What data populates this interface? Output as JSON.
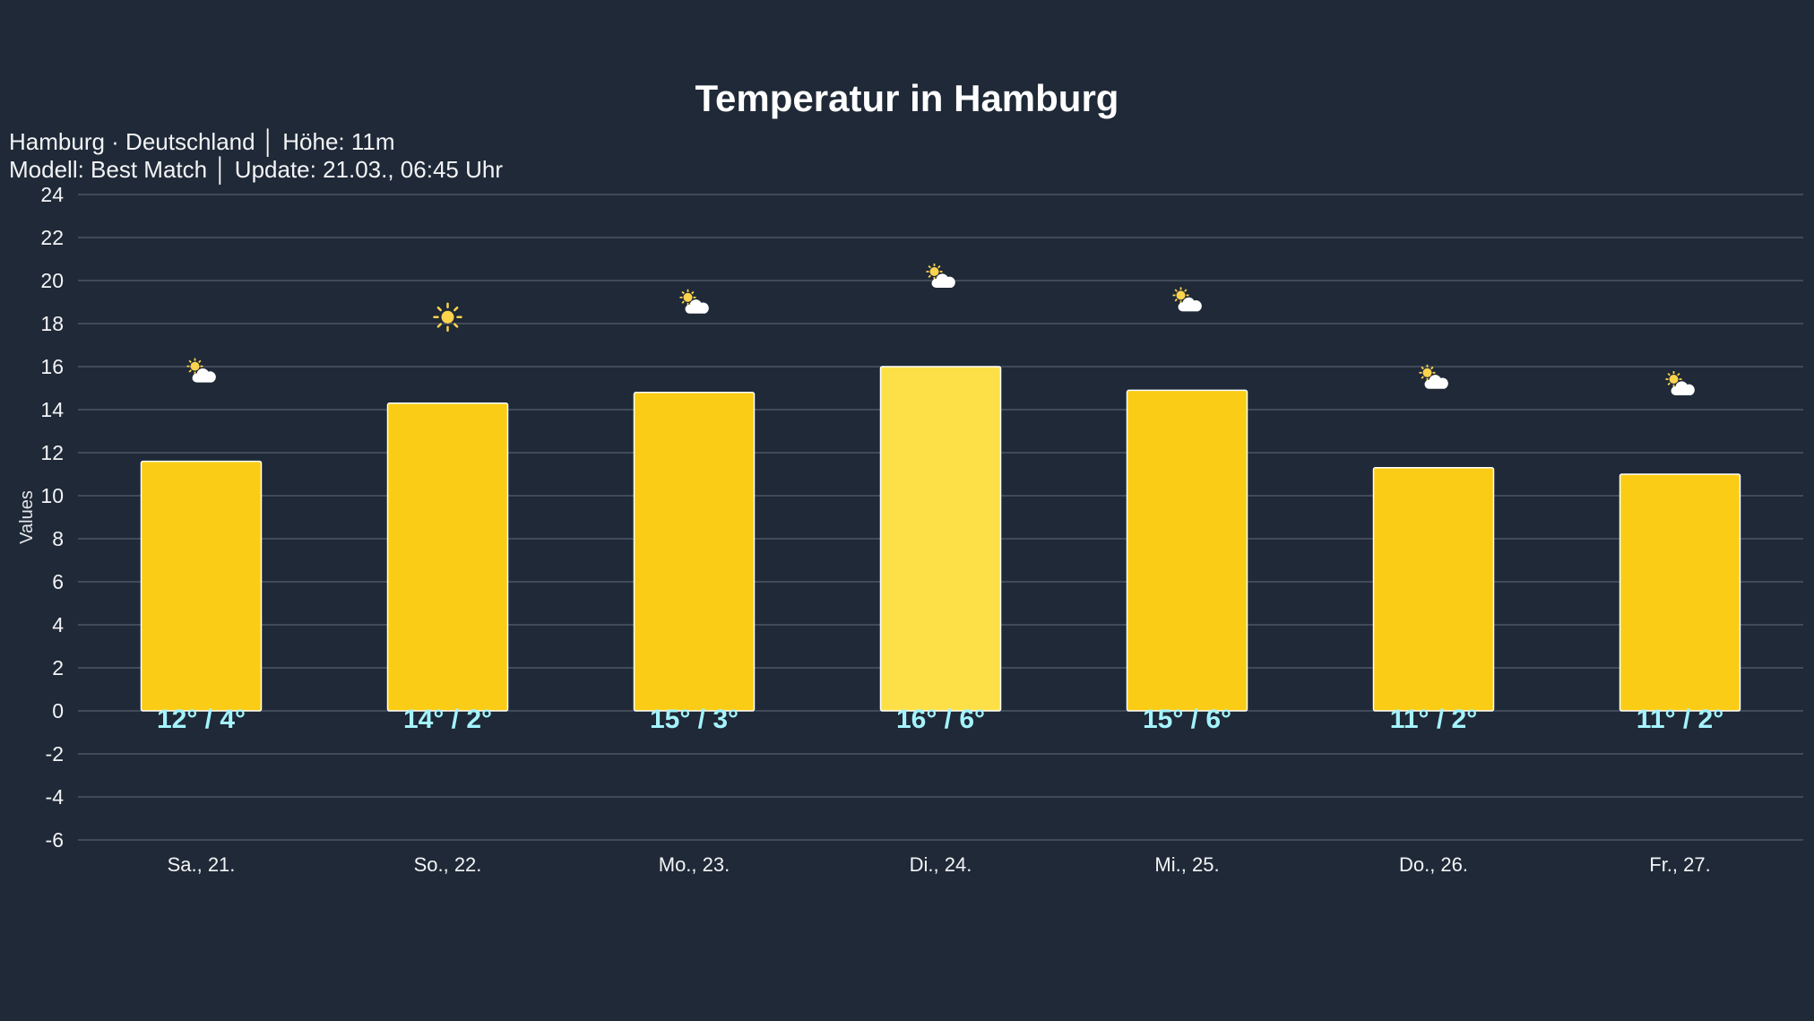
{
  "chart_data": {
    "type": "bar",
    "title": "Temperatur in Hamburg",
    "subtitle_lines": [
      "Hamburg · Deutschland │ Höhe: 11m",
      "Modell: Best Match │ Update: 21.03., 06:45 Uhr"
    ],
    "ylabel": "Values",
    "xlabel": "",
    "ylim": [
      -6,
      24
    ],
    "yticks": [
      24,
      22,
      20,
      18,
      16,
      14,
      12,
      10,
      8,
      6,
      4,
      2,
      0,
      -2,
      -4,
      -6
    ],
    "grid": true,
    "categories": [
      "Sa., 21.",
      "So., 22.",
      "Mo., 23.",
      "Di., 24.",
      "Mi., 25.",
      "Do., 26.",
      "Fr., 27."
    ],
    "values": [
      11.6,
      14.3,
      14.8,
      16.0,
      14.9,
      11.3,
      11.0
    ],
    "data_labels": [
      "12° / 4°",
      "14° / 2°",
      "15° / 3°",
      "16° / 6°",
      "15° / 6°",
      "11° / 2°",
      "11° / 2°"
    ],
    "weather_icons": [
      "partly-cloudy-icon",
      "sun-icon",
      "partly-cloudy-icon",
      "partly-cloudy-icon",
      "partly-cloudy-icon",
      "partly-cloudy-icon",
      "partly-cloudy-icon"
    ],
    "highlighted_index": 3,
    "colors": {
      "background": "#1f2937",
      "bar": "#facc15",
      "bar_highlight": "#fde047",
      "bar_border": "#ffffff",
      "data_label": "#a5f3fc",
      "grid": "#4b5563"
    }
  }
}
